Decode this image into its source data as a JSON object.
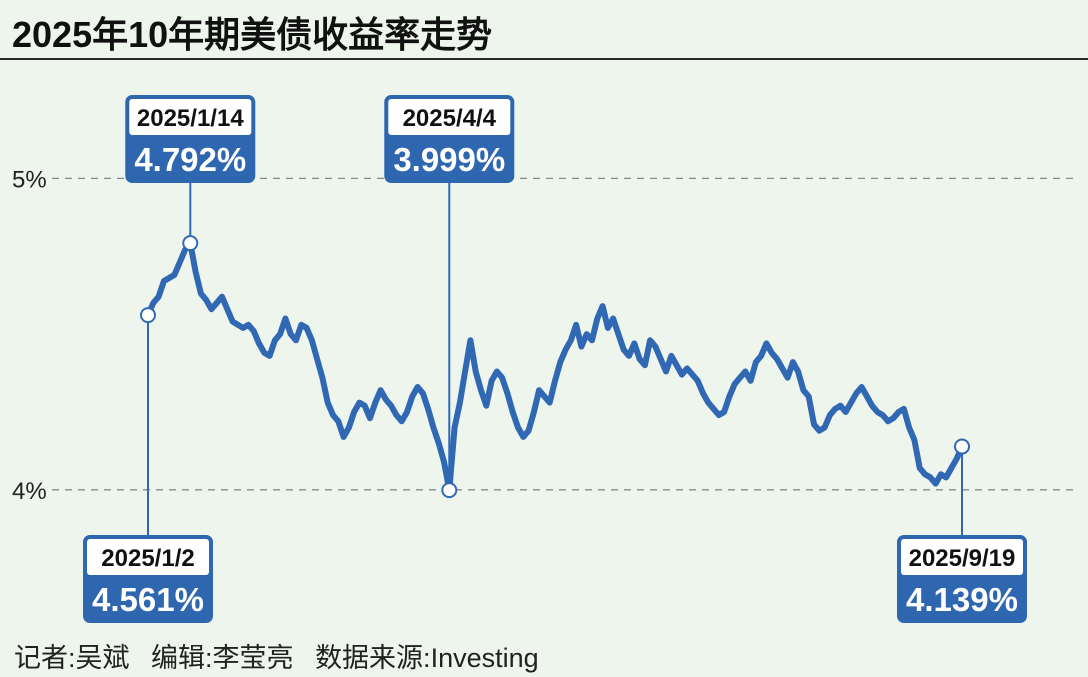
{
  "title": "2025年10年期美债收益率走势",
  "footer": {
    "reporter": "记者:吴斌",
    "editor": "编辑:李莹亮",
    "source": "数据来源:Investing"
  },
  "colors": {
    "line": "#3168b3",
    "callout_fill": "#2e66b0",
    "background": "#eef5ec"
  },
  "chart_data": {
    "type": "line",
    "title": "2025年10年期美债收益率走势",
    "ylim": [
      3.55,
      5.38
    ],
    "y_ticks": [
      {
        "value": 5.0,
        "label": "5%"
      },
      {
        "value": 4.0,
        "label": "4%"
      }
    ],
    "grid": "dashed horizontal at ticks",
    "series": [
      {
        "values": [
          4.561,
          4.6,
          4.62,
          4.67,
          4.68,
          4.69,
          4.73,
          4.77,
          4.792,
          4.7,
          4.63,
          4.61,
          4.58,
          4.6,
          4.62,
          4.58,
          4.54,
          4.53,
          4.52,
          4.53,
          4.51,
          4.47,
          4.44,
          4.43,
          4.48,
          4.5,
          4.55,
          4.5,
          4.48,
          4.53,
          4.52,
          4.48,
          4.42,
          4.36,
          4.28,
          4.24,
          4.22,
          4.17,
          4.2,
          4.25,
          4.28,
          4.27,
          4.23,
          4.28,
          4.32,
          4.29,
          4.27,
          4.24,
          4.22,
          4.25,
          4.3,
          4.33,
          4.31,
          4.26,
          4.2,
          4.15,
          4.09,
          3.999,
          4.2,
          4.28,
          4.38,
          4.48,
          4.38,
          4.32,
          4.27,
          4.35,
          4.38,
          4.36,
          4.31,
          4.25,
          4.2,
          4.17,
          4.19,
          4.25,
          4.32,
          4.3,
          4.28,
          4.35,
          4.41,
          4.45,
          4.48,
          4.53,
          4.46,
          4.5,
          4.48,
          4.55,
          4.59,
          4.52,
          4.55,
          4.5,
          4.45,
          4.43,
          4.47,
          4.42,
          4.4,
          4.48,
          4.46,
          4.42,
          4.38,
          4.43,
          4.4,
          4.37,
          4.39,
          4.37,
          4.35,
          4.31,
          4.28,
          4.26,
          4.24,
          4.25,
          4.3,
          4.34,
          4.36,
          4.38,
          4.35,
          4.41,
          4.43,
          4.47,
          4.44,
          4.42,
          4.39,
          4.36,
          4.41,
          4.38,
          4.32,
          4.3,
          4.21,
          4.19,
          4.2,
          4.24,
          4.26,
          4.27,
          4.25,
          4.28,
          4.31,
          4.33,
          4.3,
          4.27,
          4.25,
          4.24,
          4.22,
          4.23,
          4.25,
          4.26,
          4.2,
          4.16,
          4.07,
          4.05,
          4.04,
          4.02,
          4.05,
          4.04,
          4.07,
          4.1,
          4.139
        ]
      }
    ],
    "callouts": [
      {
        "date": "2025/1/2",
        "value": "4.561%",
        "index": 0,
        "y": 4.561,
        "box": "below"
      },
      {
        "date": "2025/1/14",
        "value": "4.792%",
        "index": 8,
        "y": 4.792,
        "box": "above"
      },
      {
        "date": "2025/4/4",
        "value": "3.999%",
        "index": 57,
        "y": 3.999,
        "box": "above"
      },
      {
        "date": "2025/9/19",
        "value": "4.139%",
        "index": 154,
        "y": 4.139,
        "box": "below"
      }
    ]
  }
}
